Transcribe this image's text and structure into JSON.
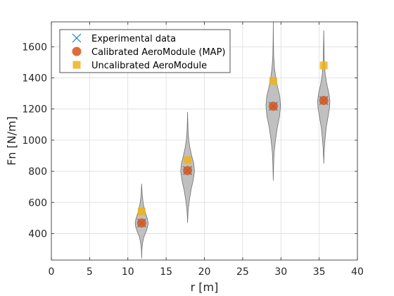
{
  "chart_data": {
    "type": "scatter",
    "xlabel": "r [m]",
    "ylabel": "Fn [N/m]",
    "xlim": [
      0,
      40
    ],
    "ylim": [
      230,
      1760
    ],
    "xticks": [
      0,
      5,
      10,
      15,
      20,
      25,
      30,
      35,
      40
    ],
    "yticks": [
      400,
      600,
      800,
      1000,
      1200,
      1400,
      1600
    ],
    "grid": true,
    "legend_position": "top-left",
    "colors": {
      "experimental": "#0072BD",
      "calibrated": "#D95319",
      "uncalibrated": "#EDB120",
      "violin_fill": "#c0c0c0",
      "violin_edge": "#6e6e6e"
    },
    "series": [
      {
        "name": "Experimental data",
        "marker": "x",
        "x": [
          11.8,
          17.8,
          29.0,
          35.6
        ],
        "y": [
          468,
          805,
          1218,
          1255
        ]
      },
      {
        "name": "Calibrated AeroModule (MAP)",
        "marker": "circle",
        "x": [
          11.8,
          17.8,
          29.0,
          35.6
        ],
        "y": [
          468,
          805,
          1218,
          1255
        ]
      },
      {
        "name": "Uncalibrated AeroModule",
        "marker": "square",
        "x": [
          11.8,
          17.8,
          29.0,
          35.6
        ],
        "y": [
          542,
          872,
          1380,
          1480
        ]
      }
    ],
    "violins": [
      {
        "x": 11.8,
        "profile": [
          [
            240,
            0
          ],
          [
            300,
            0.04
          ],
          [
            340,
            0.15
          ],
          [
            380,
            0.35
          ],
          [
            420,
            0.75
          ],
          [
            450,
            0.95
          ],
          [
            470,
            1.0
          ],
          [
            500,
            0.85
          ],
          [
            530,
            0.6
          ],
          [
            560,
            0.4
          ],
          [
            600,
            0.22
          ],
          [
            650,
            0.08
          ],
          [
            690,
            0.03
          ],
          [
            720,
            0
          ]
        ],
        "halfwidth": 0.85
      },
      {
        "x": 17.8,
        "profile": [
          [
            470,
            0
          ],
          [
            520,
            0.04
          ],
          [
            560,
            0.1
          ],
          [
            620,
            0.28
          ],
          [
            680,
            0.5
          ],
          [
            740,
            0.8
          ],
          [
            800,
            1.0
          ],
          [
            850,
            0.9
          ],
          [
            900,
            0.6
          ],
          [
            950,
            0.35
          ],
          [
            1000,
            0.18
          ],
          [
            1060,
            0.07
          ],
          [
            1120,
            0.03
          ],
          [
            1180,
            0
          ]
        ],
        "halfwidth": 0.9
      },
      {
        "x": 29.0,
        "profile": [
          [
            740,
            0
          ],
          [
            840,
            0.05
          ],
          [
            920,
            0.12
          ],
          [
            1000,
            0.3
          ],
          [
            1080,
            0.55
          ],
          [
            1150,
            0.85
          ],
          [
            1220,
            1.0
          ],
          [
            1280,
            0.9
          ],
          [
            1340,
            0.6
          ],
          [
            1400,
            0.35
          ],
          [
            1460,
            0.18
          ],
          [
            1540,
            0.06
          ],
          [
            1640,
            0.02
          ],
          [
            1760,
            0
          ]
        ],
        "halfwidth": 0.95
      },
      {
        "x": 35.6,
        "profile": [
          [
            850,
            0
          ],
          [
            900,
            0.04
          ],
          [
            950,
            0.1
          ],
          [
            1010,
            0.22
          ],
          [
            1080,
            0.4
          ],
          [
            1150,
            0.7
          ],
          [
            1210,
            0.95
          ],
          [
            1255,
            1.0
          ],
          [
            1300,
            0.85
          ],
          [
            1360,
            0.5
          ],
          [
            1420,
            0.25
          ],
          [
            1500,
            0.1
          ],
          [
            1600,
            0.04
          ],
          [
            1700,
            0.01
          ],
          [
            1705,
            0
          ]
        ],
        "halfwidth": 0.8
      }
    ]
  }
}
